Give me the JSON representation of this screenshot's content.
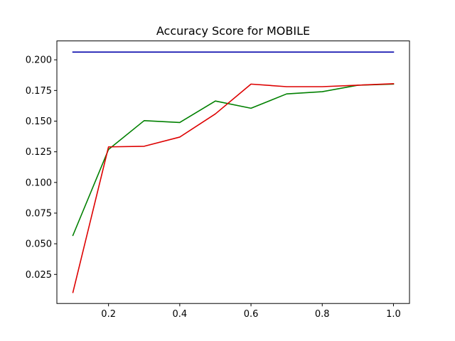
{
  "chart_data": {
    "type": "line",
    "title": "Accuracy Score for MOBILE",
    "xlabel": "",
    "ylabel": "",
    "xlim": [
      0.055,
      1.045
    ],
    "ylim": [
      0.0013,
      0.2154
    ],
    "x_ticks": [
      0.2,
      0.4,
      0.6,
      0.8,
      1.0
    ],
    "x_tick_labels": [
      "0.2",
      "0.4",
      "0.6",
      "0.8",
      "1.0"
    ],
    "y_ticks": [
      0.025,
      0.05,
      0.075,
      0.1,
      0.125,
      0.15,
      0.175,
      0.2
    ],
    "y_tick_labels": [
      "0.025",
      "0.050",
      "0.075",
      "0.100",
      "0.125",
      "0.150",
      "0.175",
      "0.200"
    ],
    "grid": false,
    "x": [
      0.1,
      0.2,
      0.3,
      0.4,
      0.5,
      0.6,
      0.7,
      0.8,
      0.9,
      1.0
    ],
    "series": [
      {
        "color": "#0000aa",
        "values": [
          0.2063,
          0.2063,
          0.2063,
          0.2063,
          0.2063,
          0.2063,
          0.2063,
          0.2063,
          0.2063,
          0.2063
        ]
      },
      {
        "color": "#008000",
        "values": [
          0.0568,
          0.1269,
          0.1504,
          0.1489,
          0.1664,
          0.1605,
          0.1722,
          0.174,
          0.1793,
          0.1802
        ]
      },
      {
        "color": "#dd0000",
        "values": [
          0.0103,
          0.129,
          0.1295,
          0.137,
          0.1559,
          0.1802,
          0.1781,
          0.1781,
          0.1793,
          0.1805
        ]
      }
    ]
  }
}
